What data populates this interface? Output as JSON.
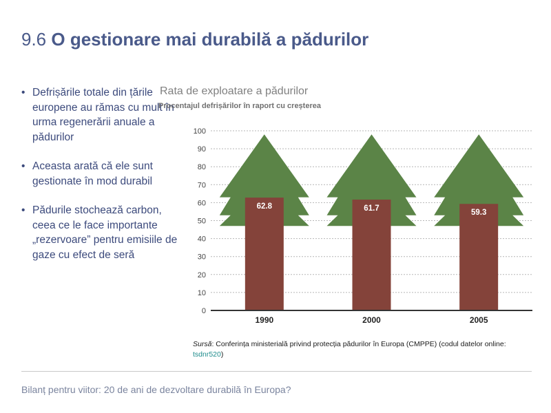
{
  "header": {
    "number": "9.6",
    "title": "O gestionare mai durabilă a pădurilor"
  },
  "bullets": [
    "Defrișările totale din țările europene au rămas cu mult în urma regenerării anuale a pădurilor",
    "Aceasta arată că ele sunt gestionate în mod durabil",
    "Pădurile stochează carbon, ceea ce le face importante „rezervoare” pentru emisiile de gaze cu efect de seră"
  ],
  "chart_data": {
    "type": "bar",
    "title": "Rata de exploatare a pădurilor",
    "subtitle": "Procentajul defrișărilor în raport cu creșterea",
    "categories": [
      "1990",
      "2000",
      "2005"
    ],
    "values": [
      62.8,
      61.7,
      59.3
    ],
    "value_labels": [
      "62.8",
      "61.7",
      "59.3"
    ],
    "ylim": [
      0,
      100
    ],
    "yticks": [
      0,
      10,
      20,
      30,
      40,
      50,
      60,
      70,
      80,
      90,
      100
    ],
    "grid": true,
    "decoration": "tree-crown-behind-bar",
    "colors": {
      "bar": "#84433a",
      "tree": "#5b8447",
      "grid": "#b5b5b5",
      "axis": "#333333",
      "label": "#ffffff"
    }
  },
  "source": {
    "label": "Sursă",
    "text": ": Conferința ministerială privind protecția pădurilor în Europa (CMPPE) (codul datelor online: ",
    "code": "tsdnr520",
    "close": ")"
  },
  "footer": {
    "text": "Bilanț pentru viitor: 20 de ani de dezvoltare durabilă în Europa?"
  }
}
